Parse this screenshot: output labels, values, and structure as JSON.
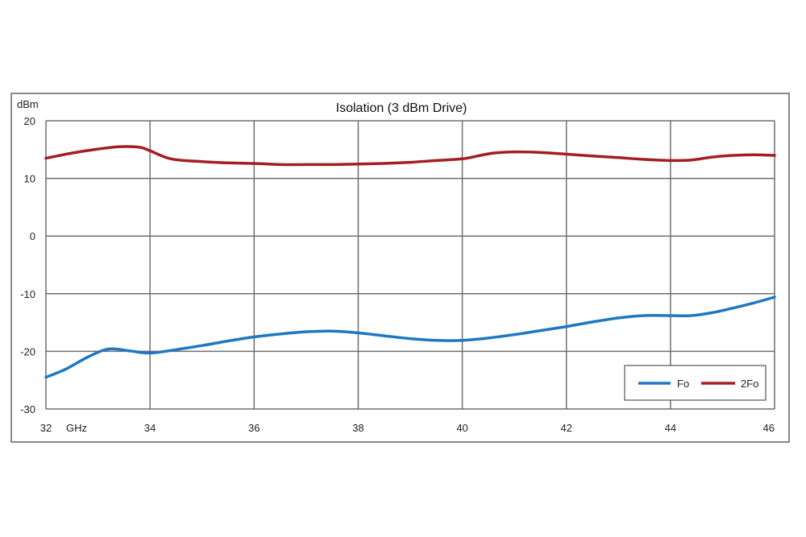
{
  "chart_data": {
    "type": "line",
    "title": "Isolation (3 dBm Drive)",
    "ylabel": "dBm",
    "xlabel": "GHz",
    "xlim": [
      32,
      46
    ],
    "ylim": [
      -30,
      20
    ],
    "x_ticks": [
      32,
      34,
      36,
      38,
      40,
      42,
      44,
      46
    ],
    "y_ticks": [
      -30,
      -20,
      -10,
      0,
      10,
      20
    ],
    "grid": true,
    "legend_position": "bottom-right",
    "series": [
      {
        "name": "Fo",
        "color": "#1f77c4",
        "x": [
          32,
          32.4,
          32.8,
          33.2,
          33.6,
          34.0,
          34.5,
          35.0,
          35.5,
          36.0,
          36.5,
          37.0,
          37.5,
          38.0,
          38.5,
          39.0,
          39.5,
          40.0,
          40.5,
          41.0,
          41.5,
          42.0,
          42.5,
          43.0,
          43.5,
          44.0,
          44.4,
          44.8,
          45.2,
          45.6,
          46.0
        ],
        "y": [
          -24.5,
          -23.0,
          -21.0,
          -19.6,
          -19.9,
          -20.3,
          -19.7,
          -19.0,
          -18.2,
          -17.5,
          -17.0,
          -16.6,
          -16.5,
          -16.8,
          -17.3,
          -17.8,
          -18.1,
          -18.1,
          -17.7,
          -17.1,
          -16.4,
          -15.7,
          -14.9,
          -14.2,
          -13.8,
          -13.8,
          -13.8,
          -13.3,
          -12.5,
          -11.6,
          -10.6
        ]
      },
      {
        "name": "2Fo",
        "color": "#a31e23",
        "x": [
          32,
          32.5,
          33.0,
          33.4,
          33.8,
          34.0,
          34.4,
          35.0,
          35.5,
          36.0,
          36.5,
          37.0,
          37.5,
          38.0,
          38.5,
          39.0,
          39.5,
          40.0,
          40.3,
          40.6,
          41.0,
          41.5,
          42.0,
          42.5,
          43.0,
          43.5,
          44.0,
          44.4,
          44.8,
          45.2,
          45.6,
          46.0
        ],
        "y": [
          13.5,
          14.4,
          15.1,
          15.5,
          15.4,
          14.8,
          13.4,
          12.9,
          12.7,
          12.6,
          12.4,
          12.4,
          12.4,
          12.5,
          12.6,
          12.8,
          13.1,
          13.4,
          13.9,
          14.4,
          14.6,
          14.5,
          14.2,
          13.9,
          13.6,
          13.3,
          13.1,
          13.2,
          13.7,
          14.0,
          14.1,
          14.0
        ]
      }
    ]
  }
}
